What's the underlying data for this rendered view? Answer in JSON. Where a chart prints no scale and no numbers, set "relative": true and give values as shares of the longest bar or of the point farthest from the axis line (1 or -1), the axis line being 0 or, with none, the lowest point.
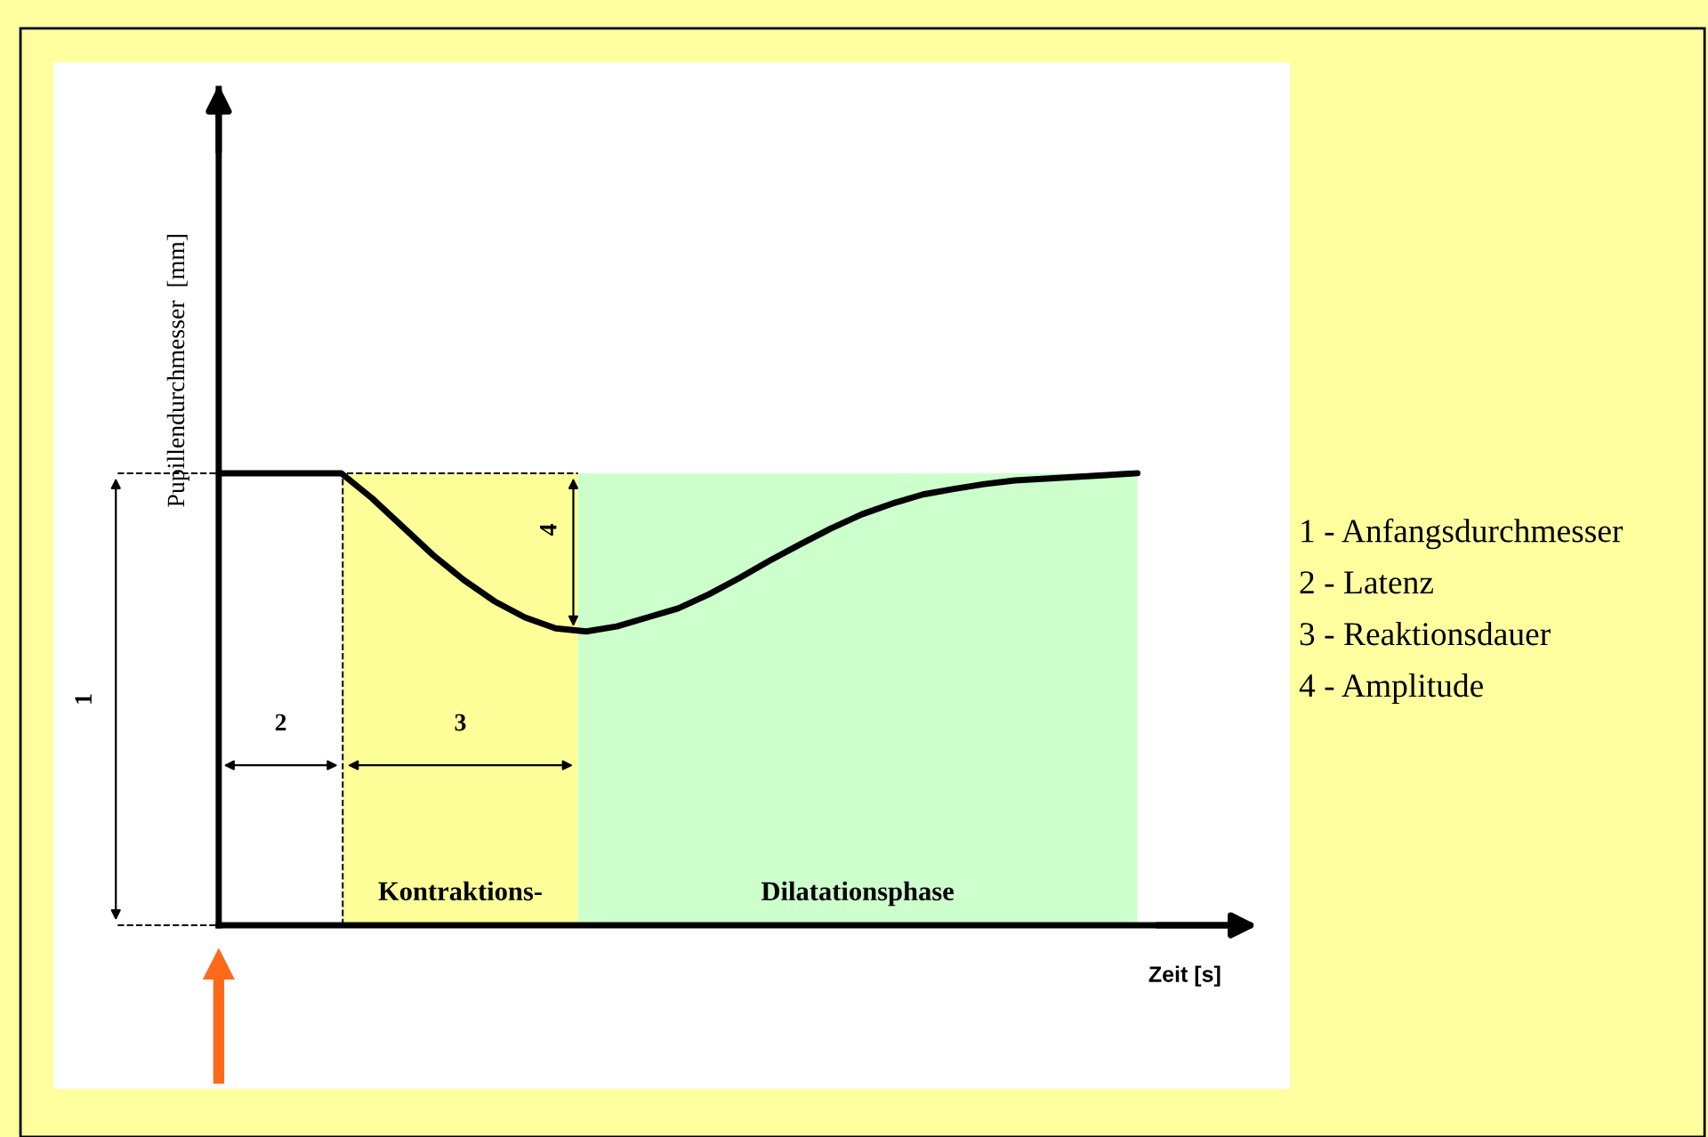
{
  "chart_data": {
    "type": "line",
    "relative": true,
    "xlabel": "Zeit [s]",
    "ylabel": "Pupillendurchmesser  [mm]",
    "categories": [
      null,
      null,
      null,
      null,
      null,
      null,
      null,
      null,
      null,
      null,
      null,
      null,
      null,
      null,
      null,
      null,
      null,
      null,
      null,
      null,
      null,
      null,
      null,
      null,
      null,
      null,
      null,
      null,
      null,
      null,
      null
    ],
    "marker": "none",
    "line_style": "solid",
    "series": [
      {
        "color": "#000000",
        "values": [
          1.0,
          1.0,
          1.0,
          1.0,
          1.0,
          0.945,
          0.882,
          0.819,
          0.764,
          0.717,
          0.681,
          0.657,
          0.65,
          0.661,
          0.681,
          0.701,
          0.732,
          0.768,
          0.807,
          0.843,
          0.878,
          0.909,
          0.933,
          0.953,
          0.965,
          0.976,
          0.984,
          0.988,
          0.992,
          0.996,
          1.0
        ]
      }
    ],
    "ref_lines": [
      {
        "axis": "y",
        "value": 1.0,
        "line_style": "dashed",
        "color": "#000000"
      }
    ],
    "annotations": [
      "1",
      "2",
      "3",
      "4",
      "Kontraktions-",
      "Dilatationsphase",
      "1 - Anfangsdurchmesser",
      "2 - Latenz",
      "3 - Reaktionsdauer",
      "4 - Amplitude"
    ]
  }
}
